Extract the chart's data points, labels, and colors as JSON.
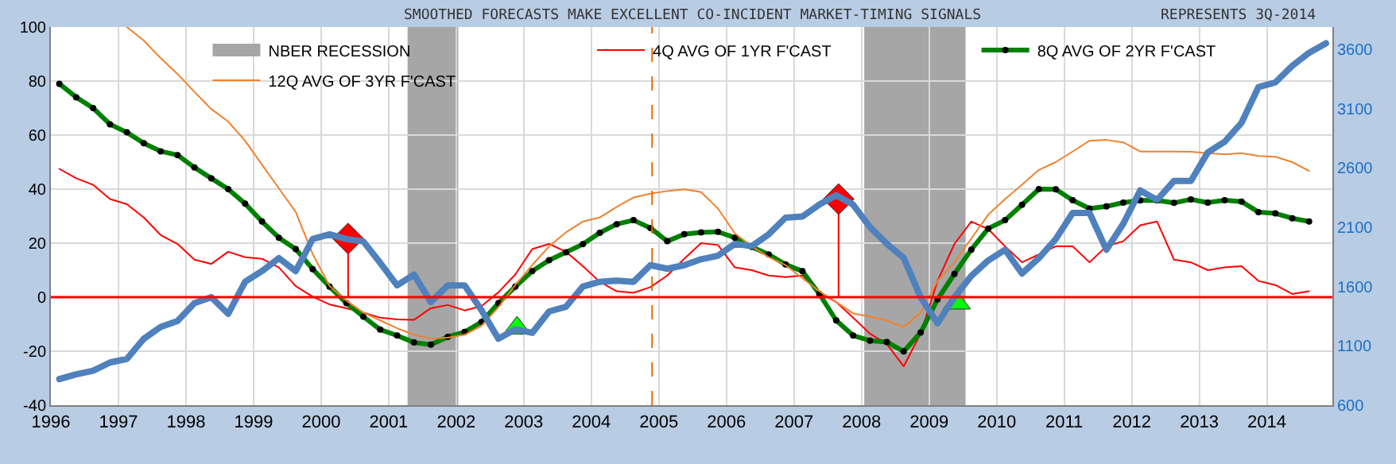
{
  "chart_data": {
    "type": "line",
    "title": "SMOOTHED FORECASTS MAKE EXCELLENT CO-INCIDENT MARKET-TIMING SIGNALS",
    "subtitle": "REPRESENTS 3Q-2014",
    "x": [
      1996.125,
      1996.375,
      1996.625,
      1996.875,
      1997.125,
      1997.375,
      1997.625,
      1997.875,
      1998.125,
      1998.375,
      1998.625,
      1998.875,
      1999.125,
      1999.375,
      1999.625,
      1999.875,
      2000.125,
      2000.375,
      2000.625,
      2000.875,
      2001.125,
      2001.375,
      2001.625,
      2001.875,
      2002.125,
      2002.375,
      2002.625,
      2002.875,
      2003.125,
      2003.375,
      2003.625,
      2003.875,
      2004.125,
      2004.375,
      2004.625,
      2004.875,
      2005.125,
      2005.375,
      2005.625,
      2005.875,
      2006.125,
      2006.375,
      2006.625,
      2006.875,
      2007.125,
      2007.375,
      2007.625,
      2007.875,
      2008.125,
      2008.375,
      2008.625,
      2008.875,
      2009.125,
      2009.375,
      2009.625,
      2009.875,
      2010.125,
      2010.375,
      2010.625,
      2010.875,
      2011.125,
      2011.375,
      2011.625,
      2011.875,
      2012.125,
      2012.375,
      2012.625,
      2012.875,
      2013.125,
      2013.375,
      2013.625,
      2013.875,
      2014.125,
      2014.375,
      2014.625,
      2014.875
    ],
    "series": [
      {
        "name": "4Q AVG OF 1YR F'CAST",
        "color": "#ff0000",
        "values": [
          47.5,
          44,
          41.6,
          36.3,
          34.4,
          29.5,
          23,
          19.7,
          13.9,
          12.3,
          16.8,
          14.8,
          14.2,
          11,
          4.1,
          0.2,
          -2.7,
          -4.1,
          -5.7,
          -7.6,
          -8.2,
          -8.4,
          -4.1,
          -2.9,
          -4.9,
          -3.3,
          1.8,
          8.4,
          17.8,
          19.7,
          16.8,
          11.5,
          5.7,
          2.2,
          1.6,
          3.7,
          8,
          14.2,
          20,
          19.3,
          11,
          10,
          8,
          7.4,
          8,
          1.6,
          -1.8,
          -7.6,
          -13.5,
          -17.4,
          -25.6,
          -13.5,
          6,
          19.7,
          28,
          25.2,
          18.8,
          12.9,
          15.8,
          18.8,
          18.8,
          12.9,
          18.8,
          20.7,
          26.6,
          28,
          13.9,
          12.9,
          10,
          11,
          11.5,
          6,
          4.5,
          1.2,
          2.2,
          null
        ]
      },
      {
        "name": "8Q AVG OF 2YR F'CAST",
        "color": "#008000",
        "marker": "circle",
        "values": [
          79,
          74,
          70,
          64,
          61,
          57,
          54,
          52.6,
          48,
          44,
          40,
          34.6,
          28,
          22,
          17.8,
          10.4,
          3.9,
          -2.2,
          -7.2,
          -12,
          -14.2,
          -16.8,
          -17.6,
          -14.7,
          -12.9,
          -9.2,
          -2.2,
          3.9,
          9.6,
          13.7,
          16.6,
          19.6,
          23.8,
          27,
          28.5,
          25.6,
          20.7,
          23.3,
          24,
          24.2,
          22,
          18.6,
          15.8,
          12.1,
          9.6,
          1.2,
          -8.6,
          -14.2,
          -16.1,
          -16.6,
          -20.1,
          -13.1,
          -0.8,
          8.6,
          17.6,
          25.4,
          28.5,
          34.2,
          40,
          39.9,
          35.9,
          32.8,
          33.6,
          35,
          35.8,
          35.8,
          34.9,
          36.2,
          35,
          35.9,
          35.4,
          31.5,
          31,
          29.2,
          28,
          null
        ]
      },
      {
        "name": "12Q AVG OF 3YR F'CAST",
        "color": "#f0822d",
        "values": [
          null,
          null,
          null,
          null,
          100,
          95,
          88.5,
          82.6,
          76,
          69.6,
          65,
          57.9,
          49,
          40.3,
          31.5,
          16,
          4.1,
          -1.3,
          -5.7,
          -8.6,
          -11.5,
          -13.9,
          -15.4,
          -15,
          -13.9,
          -10.6,
          -3.7,
          4.5,
          11.9,
          18.8,
          24,
          28,
          29.5,
          33.4,
          36.9,
          38.3,
          39.3,
          39.9,
          38.9,
          32.8,
          23.6,
          18.8,
          14.8,
          11.9,
          7,
          2.2,
          -1.8,
          -6,
          -7.2,
          -8.6,
          -11.1,
          -5.7,
          6,
          12.9,
          21.7,
          30.5,
          36.3,
          41.6,
          47.1,
          50,
          53.9,
          57.9,
          58.2,
          57.3,
          53.9,
          53.9,
          53.9,
          53.8,
          53.3,
          52.9,
          53.3,
          52.3,
          52,
          50,
          46.7,
          null
        ]
      },
      {
        "color": "#4f81bd",
        "axis": "y2",
        "values": [
          820,
          860,
          890,
          960,
          990,
          1160,
          1260,
          1310,
          1460,
          1510,
          1370,
          1640,
          1730,
          1840,
          1730,
          2000,
          2040,
          2000,
          1980,
          1800,
          1610,
          1700,
          1470,
          1610,
          1610,
          1400,
          1160,
          1240,
          1210,
          1390,
          1430,
          1600,
          1640,
          1650,
          1640,
          1780,
          1750,
          1780,
          1830,
          1860,
          1960,
          1940,
          2040,
          2180,
          2190,
          2290,
          2370,
          2290,
          2100,
          1960,
          1840,
          1510,
          1290,
          1510,
          1690,
          1820,
          1910,
          1710,
          1840,
          2000,
          2220,
          2220,
          1910,
          2130,
          2410,
          2330,
          2490,
          2490,
          2730,
          2820,
          2980,
          3280,
          3320,
          3460,
          3570,
          3650
        ]
      },
      {
        "type": "line",
        "color": "#ff0000",
        "x": [
          2000.4,
          2000.4,
          null,
          2007.66,
          2007.66
        ],
        "values": [
          21.7,
          0,
          null,
          36.3,
          0
        ]
      },
      {
        "type": "scatter",
        "color": "#ff0000",
        "marker": "diamond",
        "x": [
          2000.4,
          2007.66
        ],
        "values": [
          21.7,
          36.3
        ]
      },
      {
        "type": "scatter",
        "color": "#00ff00",
        "marker": "triangle",
        "x": [
          2002.9,
          2009.41
        ],
        "values": [
          -11.5,
          -2.2
        ]
      }
    ],
    "bands": [
      {
        "axis": "x",
        "from": 2001.28,
        "to": 2002.03,
        "label": "NBER RECESSION",
        "color": "#a6a6a6"
      },
      {
        "axis": "x",
        "from": 2008.04,
        "to": 2009.54,
        "color": "#a6a6a6"
      }
    ],
    "ref_lines": [
      {
        "axis": "y",
        "value": 0,
        "color": "#ff0000"
      },
      {
        "axis": "x",
        "value": 2004.9,
        "color": "#e36c09",
        "line_style": "dashed"
      }
    ],
    "xlim": [
      1996,
      2014.97
    ],
    "xticks": [
      1996,
      1997,
      1998,
      1999,
      2000,
      2001,
      2002,
      2003,
      2004,
      2005,
      2006,
      2007,
      2008,
      2009,
      2010,
      2011,
      2012,
      2013,
      2014
    ],
    "ylim": [
      -40,
      100
    ],
    "yticks": [
      -40,
      -20,
      0,
      20,
      40,
      60,
      80,
      100
    ],
    "y2lim": [
      600,
      3787
    ],
    "y2ticks": [
      600,
      1100,
      1600,
      2100,
      2600,
      3100,
      3600
    ],
    "grid": true,
    "legend": "top left",
    "line_style": "solid"
  }
}
